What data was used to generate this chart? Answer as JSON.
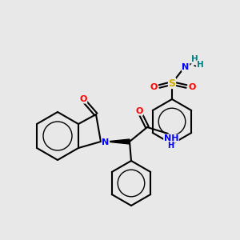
{
  "background_color": "#e8e8e8",
  "atom_colors": {
    "C": "#000000",
    "N": "#0000ff",
    "O": "#ff0000",
    "S": "#ccaa00",
    "H": "#008080"
  },
  "bond_color": "#000000",
  "fig_size": [
    3.0,
    3.0
  ],
  "dpi": 100
}
